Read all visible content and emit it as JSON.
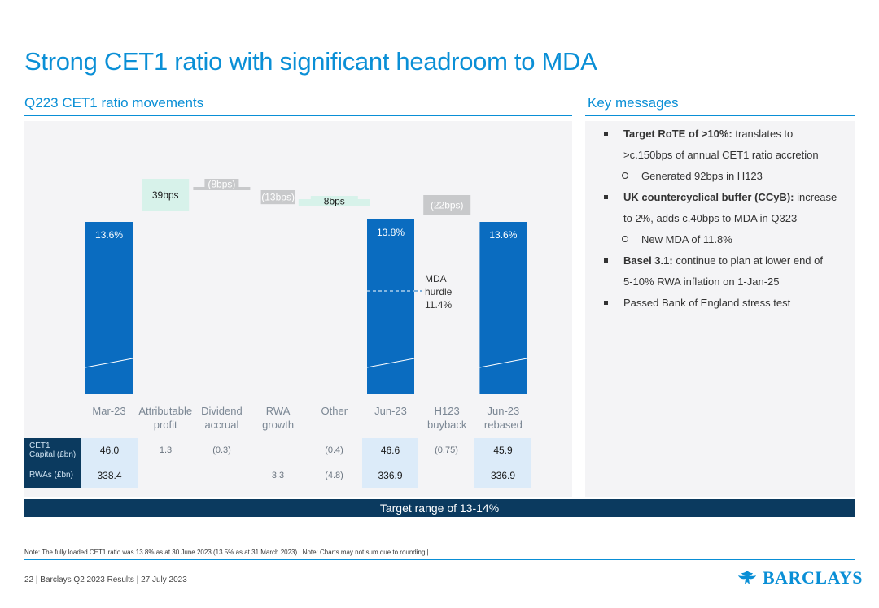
{
  "title": "Strong CET1 ratio with significant headroom to MDA",
  "left_heading": "Q223 CET1 ratio movements",
  "right_heading": "Key messages",
  "chart_data": {
    "type": "bar",
    "subtype": "waterfall",
    "unit": "%",
    "categories": [
      {
        "label": "Mar-23",
        "line2": "",
        "kind": "total",
        "start": 0,
        "end": 13.6,
        "value_label": "13.6%"
      },
      {
        "label": "Attributable",
        "line2": "profit",
        "kind": "increase",
        "start": 13.6,
        "end": 13.99,
        "value_label": "39bps"
      },
      {
        "label": "Dividend",
        "line2": "accrual",
        "kind": "decrease",
        "start": 13.99,
        "end": 13.91,
        "value_label": "(8bps)"
      },
      {
        "label": "RWA",
        "line2": "growth",
        "kind": "decrease",
        "start": 13.91,
        "end": 13.78,
        "value_label": "(13bps)"
      },
      {
        "label": "Other",
        "line2": "",
        "kind": "increase",
        "start": 13.78,
        "end": 13.86,
        "value_label": "8bps"
      },
      {
        "label": "Jun-23",
        "line2": "",
        "kind": "total",
        "start": 0,
        "end": 13.8,
        "value_label": "13.8%"
      },
      {
        "label": "H123",
        "line2": "buyback",
        "kind": "decrease",
        "start": 13.8,
        "end": 13.58,
        "value_label": "(22bps)"
      },
      {
        "label": "Jun-23",
        "line2": "rebased",
        "kind": "total",
        "start": 0,
        "end": 13.6,
        "value_label": "13.6%"
      }
    ],
    "mda_hurdle": {
      "value": 11.4,
      "label_lines": [
        "MDA",
        "hurdle",
        "11.4%"
      ]
    },
    "colors": {
      "total": "#0a6cc0",
      "increase": "#d7f2ea",
      "decrease": "#c8c9cb",
      "decrease_text": "#ffffff",
      "increase_text": "#1a1a1a",
      "total_text": "#ffffff"
    }
  },
  "table": {
    "rows": [
      {
        "header": [
          "CET1",
          "Capital (£bn)"
        ],
        "cells": [
          "46.0",
          "1.3",
          "(0.3)",
          "",
          "(0.4)",
          "46.6",
          "(0.75)",
          "45.9"
        ]
      },
      {
        "header": [
          "RWAs (£bn)",
          ""
        ],
        "cells": [
          "338.4",
          "",
          "",
          "3.3",
          "(4.8)",
          "336.9",
          "",
          "336.9"
        ]
      }
    ]
  },
  "target_banner": "Target range of 13-14%",
  "key_messages": [
    {
      "type": "bullet",
      "bold": "Target RoTE of >10%:",
      "text": " translates to"
    },
    {
      "type": "cont",
      "text": ">c.150bps of annual CET1 ratio accretion"
    },
    {
      "type": "sub",
      "text": "Generated 92bps in H123"
    },
    {
      "type": "bullet",
      "bold": "UK countercyclical buffer (CCyB):",
      "text": " increase"
    },
    {
      "type": "cont",
      "text": "to 2%, adds c.40bps to MDA in Q323"
    },
    {
      "type": "sub",
      "text": "New MDA of 11.8%"
    },
    {
      "type": "bullet",
      "bold": "Basel 3.1:",
      "text": " continue to plan at lower end of"
    },
    {
      "type": "cont",
      "text": "5-10% RWA inflation on 1-Jan-25"
    },
    {
      "type": "bullet",
      "bold": "",
      "text": "Passed Bank of England stress test"
    }
  ],
  "note": "Note: The fully loaded CET1 ratio was 13.8% as at 30 June 2023 (13.5% as at 31 March 2023) | Note: Charts may not sum due to rounding |",
  "footer": {
    "page": "22",
    "deck": "Barclays Q2 2023 Results",
    "date": "27 July 2023",
    "logo_text": "BARCLAYS"
  }
}
